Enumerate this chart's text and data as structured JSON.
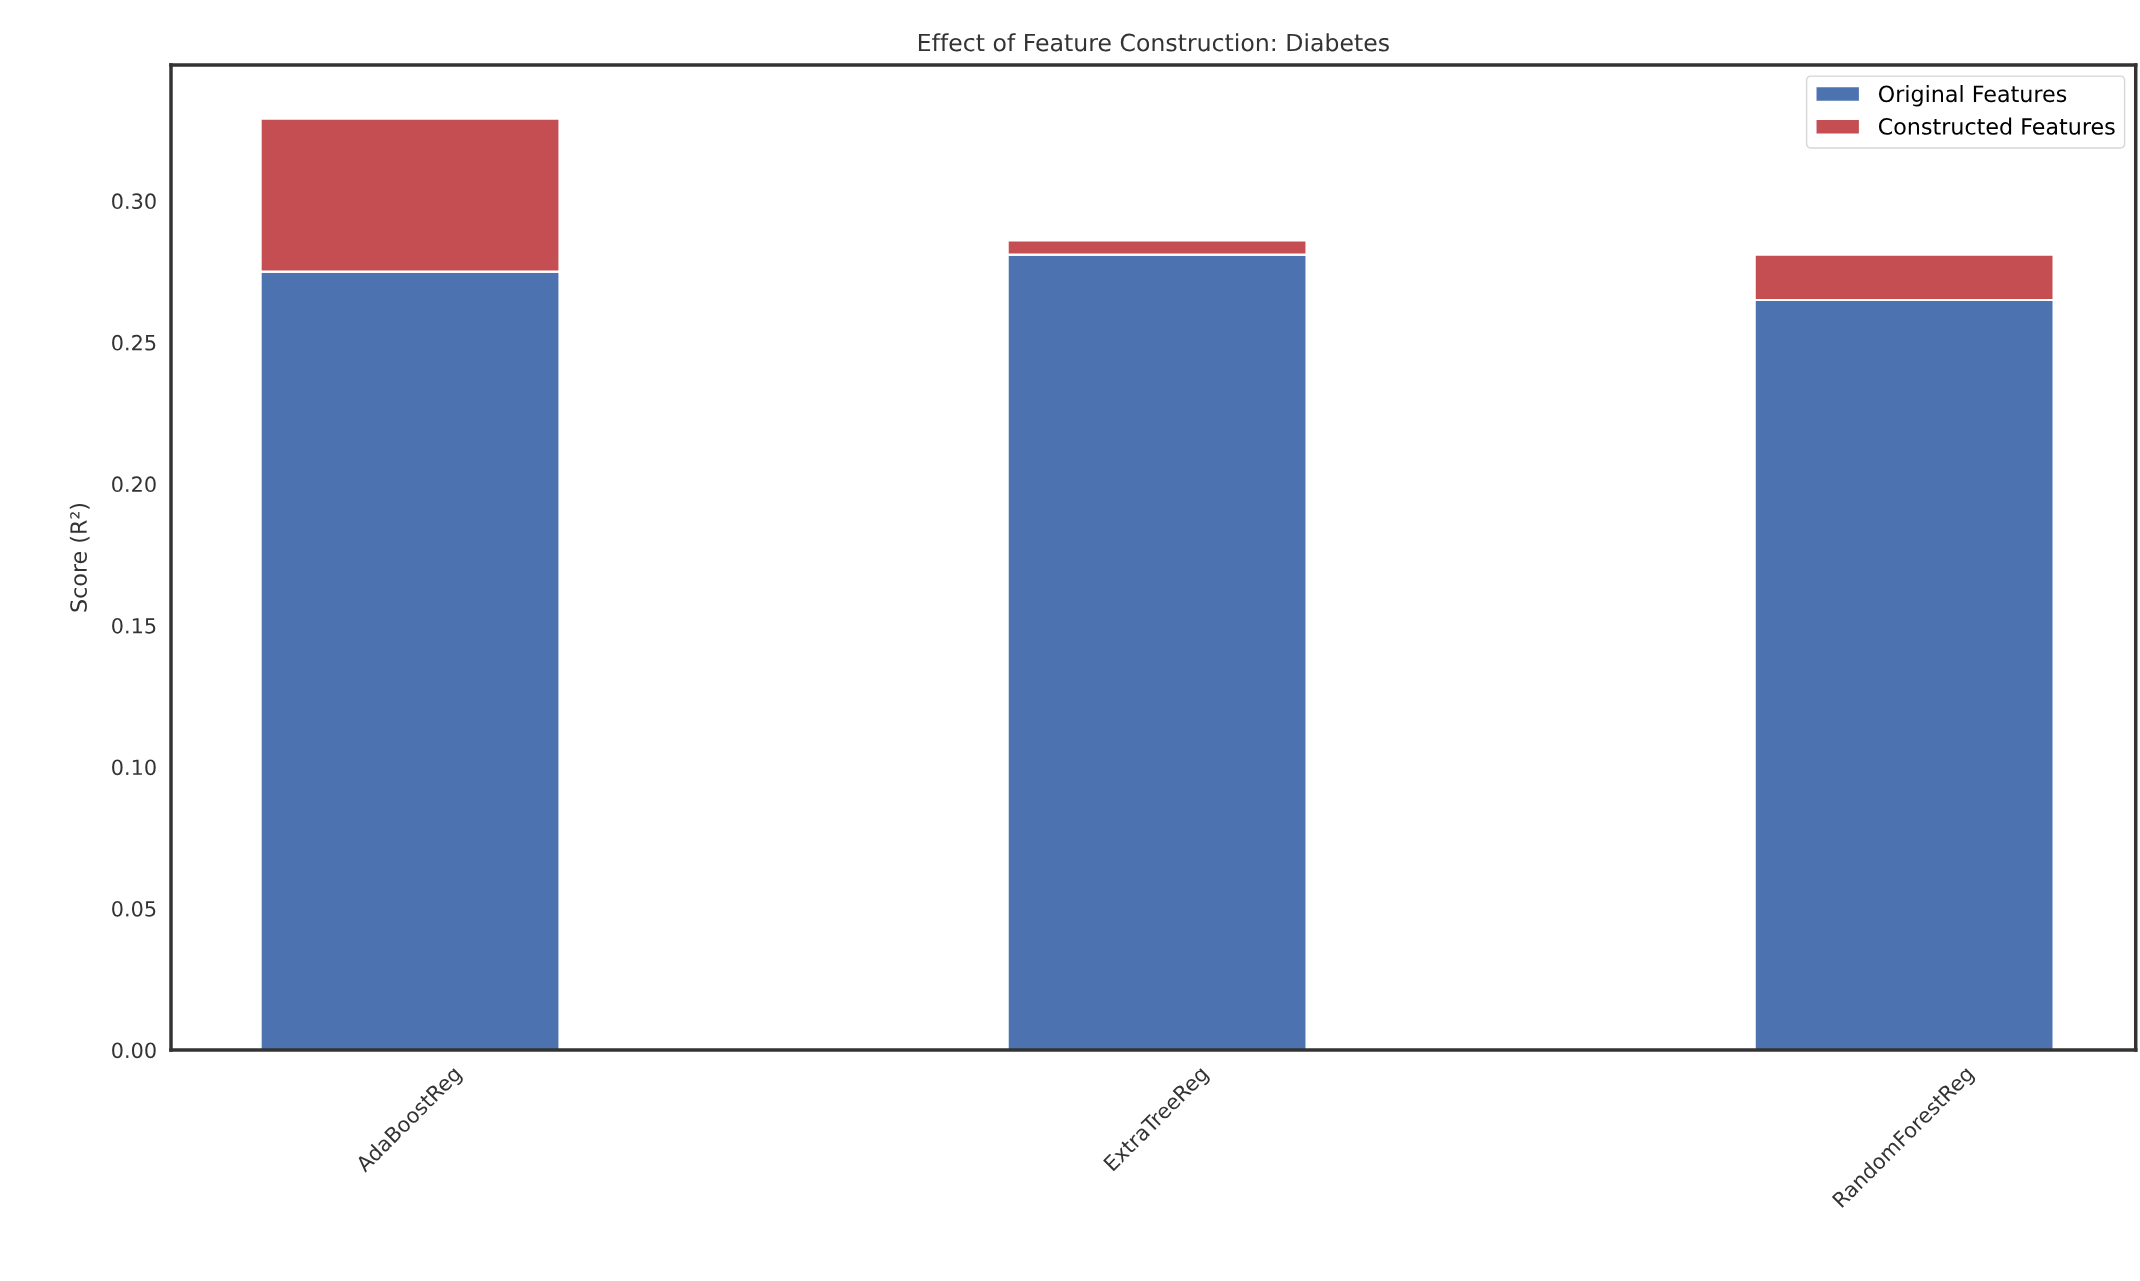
{
  "chart_data": {
    "type": "bar",
    "title": "Effect of Feature Construction: Diabetes",
    "ylabel": "Score (R²)",
    "categories": [
      "AdaBoostReg",
      "ExtraTreeReg",
      "RandomForestReg"
    ],
    "stacked": true,
    "series": [
      {
        "name": "Original Features",
        "color": "#4c72b0",
        "values": [
          0.275,
          0.281,
          0.265
        ]
      },
      {
        "name": "Constructed Features",
        "color": "#c44e52",
        "values": [
          0.054,
          0.005,
          0.016
        ]
      }
    ],
    "ylim": [
      0,
      0.348
    ],
    "yticks": [
      {
        "value": 0,
        "label": "0.00"
      },
      {
        "value": 0.05,
        "label": "0.05"
      },
      {
        "value": 0.1,
        "label": "0.10"
      },
      {
        "value": 0.15,
        "label": "0.15"
      },
      {
        "value": 0.2,
        "label": "0.20"
      },
      {
        "value": 0.25,
        "label": "0.25"
      },
      {
        "value": 0.3,
        "label": "0.30"
      }
    ],
    "grid": false,
    "legend": "top right"
  }
}
